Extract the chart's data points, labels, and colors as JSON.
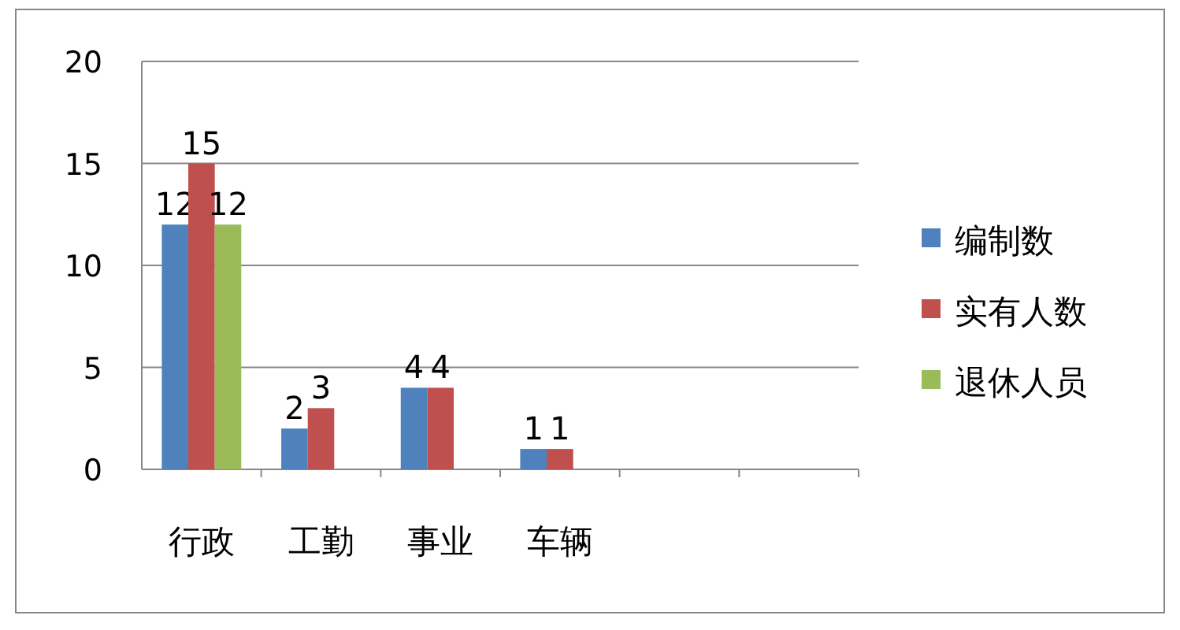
{
  "chart_data": {
    "type": "bar",
    "categories": [
      "行政",
      "工勤",
      "事业",
      "车辆",
      null,
      null
    ],
    "series": [
      {
        "name": "编制数",
        "color": "#4f81bd",
        "values": [
          12,
          2,
          4,
          1,
          null,
          null
        ]
      },
      {
        "name": "实有人数",
        "color": "#c0504d",
        "values": [
          15,
          3,
          4,
          1,
          null,
          null
        ]
      },
      {
        "name": "退休人员",
        "color": "#9bbb59",
        "values": [
          12,
          null,
          null,
          null,
          null,
          null
        ]
      }
    ],
    "ylim": [
      0,
      20
    ],
    "yticks": [
      0,
      5,
      10,
      15,
      20
    ],
    "grid": "y",
    "legend": "right",
    "data_labels": true
  }
}
